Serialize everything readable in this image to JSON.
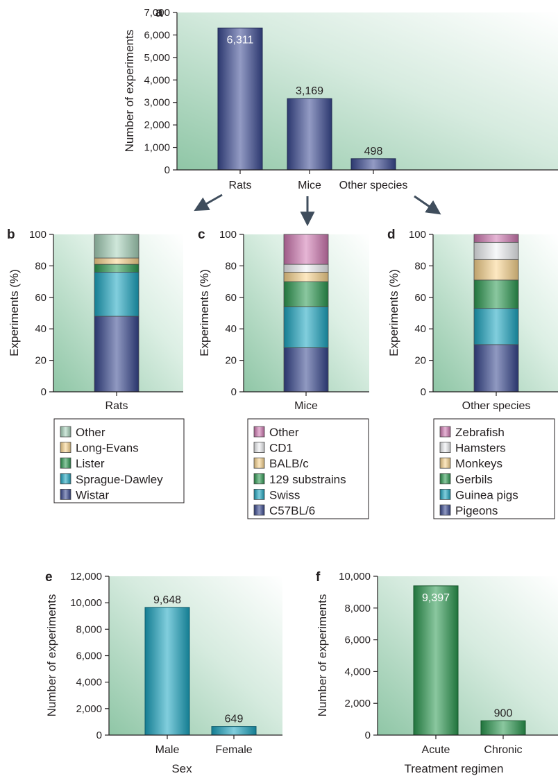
{
  "chart_data": [
    {
      "panel": "a",
      "type": "bar",
      "categories": [
        "Rats",
        "Mice",
        "Other species"
      ],
      "values": [
        6311,
        3169,
        498
      ],
      "data_labels": [
        "6,311",
        "3,169",
        "498"
      ],
      "xlabel": "",
      "ylabel": "Number of experiments",
      "ylim": [
        0,
        7000
      ],
      "yticks": [
        "0",
        "1,000",
        "2,000",
        "3,000",
        "4,000",
        "5,000",
        "6,000",
        "7,000"
      ],
      "colors": [
        "#3b4a94"
      ]
    },
    {
      "panel": "b",
      "type": "bar",
      "stacked": true,
      "categories": [
        "Rats"
      ],
      "ylabel": "Experiments (%)",
      "ylim": [
        0,
        100
      ],
      "yticks": [
        "0",
        "20",
        "40",
        "60",
        "80",
        "100"
      ],
      "series": [
        {
          "name": "Wistar",
          "values": [
            48
          ],
          "color": "#35458f"
        },
        {
          "name": "Sprague-Dawley",
          "values": [
            28
          ],
          "color": "#1aa6c2"
        },
        {
          "name": "Lister",
          "values": [
            5
          ],
          "color": "#2a9a50"
        },
        {
          "name": "Long-Evans",
          "values": [
            4
          ],
          "color": "#fcd68f"
        },
        {
          "name": "Other",
          "values": [
            15
          ],
          "color": "#a7d4bb"
        }
      ],
      "legend": [
        "Other",
        "Long-Evans",
        "Lister",
        "Sprague-Dawley",
        "Wistar"
      ]
    },
    {
      "panel": "c",
      "type": "bar",
      "stacked": true,
      "categories": [
        "Mice"
      ],
      "ylabel": "Experiments (%)",
      "ylim": [
        0,
        100
      ],
      "yticks": [
        "0",
        "20",
        "40",
        "60",
        "80",
        "100"
      ],
      "series": [
        {
          "name": "C57BL/6",
          "values": [
            28
          ],
          "color": "#35458f"
        },
        {
          "name": "Swiss",
          "values": [
            26
          ],
          "color": "#1aa6c2"
        },
        {
          "name": "129 substrains",
          "values": [
            16
          ],
          "color": "#2a9a50"
        },
        {
          "name": "BALB/c",
          "values": [
            6
          ],
          "color": "#fcd68f"
        },
        {
          "name": "CD1",
          "values": [
            5
          ],
          "color": "#f1f3f5"
        },
        {
          "name": "Other",
          "values": [
            19
          ],
          "color": "#d178b3"
        }
      ],
      "legend": [
        "Other",
        "CD1",
        "BALB/c",
        "129 substrains",
        "Swiss",
        "C57BL/6"
      ]
    },
    {
      "panel": "d",
      "type": "bar",
      "stacked": true,
      "categories": [
        "Other species"
      ],
      "ylabel": "Experiments (%)",
      "ylim": [
        0,
        100
      ],
      "yticks": [
        "0",
        "20",
        "40",
        "60",
        "80",
        "100"
      ],
      "series": [
        {
          "name": "Pigeons",
          "values": [
            30
          ],
          "color": "#35458f"
        },
        {
          "name": "Guinea pigs",
          "values": [
            23
          ],
          "color": "#1aa6c2"
        },
        {
          "name": "Gerbils",
          "values": [
            18
          ],
          "color": "#2a9a50"
        },
        {
          "name": "Monkeys",
          "values": [
            13
          ],
          "color": "#fcd68f"
        },
        {
          "name": "Hamsters",
          "values": [
            11
          ],
          "color": "#f1f3f5"
        },
        {
          "name": "Zebrafish",
          "values": [
            5
          ],
          "color": "#d178b3"
        }
      ],
      "legend": [
        "Zebrafish",
        "Hamsters",
        "Monkeys",
        "Gerbils",
        "Guinea pigs",
        "Pigeons"
      ]
    },
    {
      "panel": "e",
      "type": "bar",
      "categories": [
        "Male",
        "Female"
      ],
      "values": [
        9648,
        649
      ],
      "data_labels": [
        "9,648",
        "649"
      ],
      "xlabel": "Sex",
      "ylabel": "Number of experiments",
      "ylim": [
        0,
        12000
      ],
      "yticks": [
        "0",
        "2,000",
        "4,000",
        "6,000",
        "8,000",
        "10,000",
        "12,000"
      ],
      "colors": [
        "#1aa6c2"
      ]
    },
    {
      "panel": "f",
      "type": "bar",
      "categories": [
        "Acute",
        "Chronic"
      ],
      "values": [
        9397,
        900
      ],
      "data_labels": [
        "9,397",
        "900"
      ],
      "xlabel": "Treatment regimen",
      "ylabel": "Number of experiments",
      "ylim": [
        0,
        10000
      ],
      "yticks": [
        "0",
        "2,000",
        "4,000",
        "6,000",
        "8,000",
        "10,000"
      ],
      "colors": [
        "#2a9a50"
      ]
    }
  ]
}
